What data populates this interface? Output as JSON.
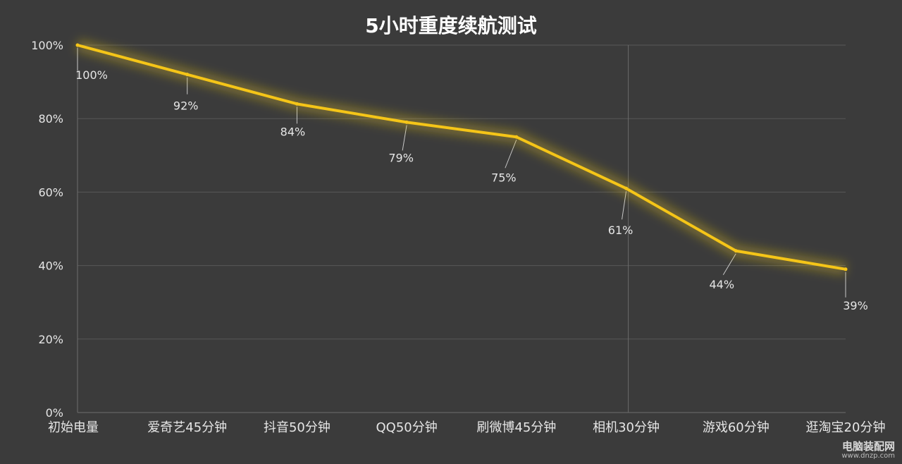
{
  "chart_data": {
    "type": "line",
    "title": "5小时重度续航测试",
    "categories": [
      "初始电量",
      "爱奇艺45分钟",
      "抖音50分钟",
      "QQ50分钟",
      "刷微博45分钟",
      "相机30分钟",
      "游戏60分钟",
      "逛淘宝20分钟"
    ],
    "series": [
      {
        "values": [
          100,
          92,
          84,
          79,
          75,
          61,
          44,
          39
        ]
      }
    ],
    "data_labels": [
      "100%",
      "92%",
      "84%",
      "79%",
      "75%",
      "61%",
      "44%",
      "39%"
    ],
    "y_ticks": [
      0,
      20,
      40,
      60,
      80,
      100
    ],
    "y_tick_labels": [
      "0%",
      "20%",
      "40%",
      "60%",
      "80%",
      "100%"
    ],
    "ylim": [
      0,
      100
    ],
    "xlabel": "",
    "ylabel": "",
    "grid": true,
    "line_color": "#f5c518",
    "background_color": "#3b3b3b"
  },
  "watermark": {
    "text": "电脑装配网",
    "url": "www.dnzp.com"
  }
}
